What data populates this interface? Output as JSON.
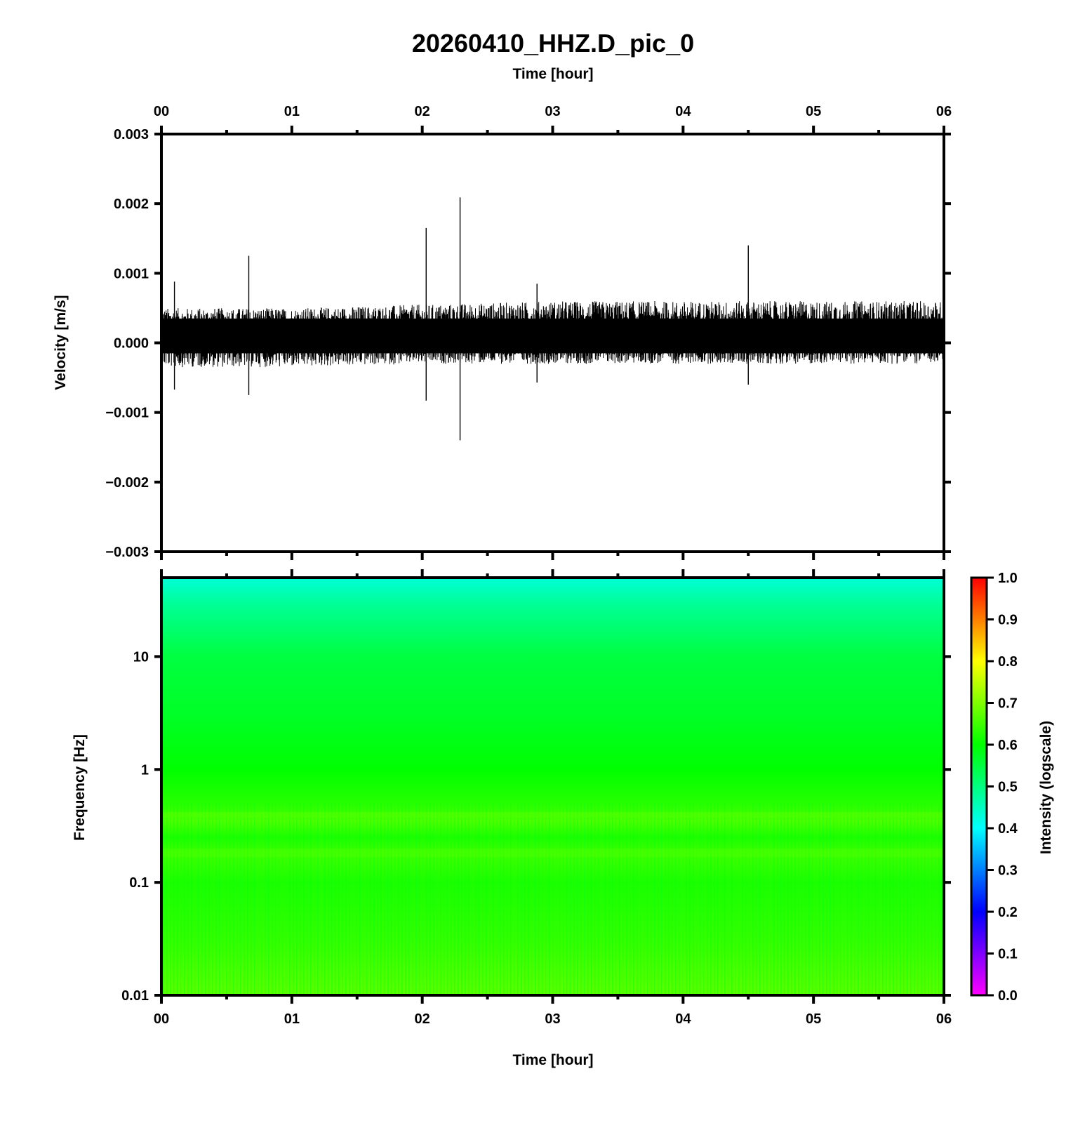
{
  "chart_data": [
    {
      "type": "line",
      "title": "20260410_HHZ.D_pic_0",
      "top_xlabel": "Time [hour]",
      "ylabel": "Velocity [m/s]",
      "x_ticks": [
        "00",
        "01",
        "02",
        "03",
        "04",
        "05",
        "06"
      ],
      "xlim": [
        0,
        6
      ],
      "ylim": [
        -0.003,
        0.003
      ],
      "y_ticks": [
        {
          "value": 0.003,
          "label": "0.003"
        },
        {
          "value": 0.002,
          "label": "0.002"
        },
        {
          "value": 0.001,
          "label": "0.001"
        },
        {
          "value": 0.0,
          "label": "0.000"
        },
        {
          "value": -0.001,
          "label": "−0.001"
        },
        {
          "value": -0.002,
          "label": "−0.002"
        },
        {
          "value": -0.003,
          "label": "−0.003"
        }
      ],
      "series": [
        {
          "color": "#000000",
          "baseline": 0.0001,
          "envelope": [
            {
              "x": 0.0,
              "low": -0.00035,
              "high": 0.0005
            },
            {
              "x": 1.0,
              "low": -0.00035,
              "high": 0.0005
            },
            {
              "x": 2.0,
              "low": -0.0003,
              "high": 0.00055
            },
            {
              "x": 3.0,
              "low": -0.0003,
              "high": 0.0006
            },
            {
              "x": 4.0,
              "low": -0.0003,
              "high": 0.0006
            },
            {
              "x": 5.0,
              "low": -0.0003,
              "high": 0.0006
            },
            {
              "x": 6.0,
              "low": -0.0003,
              "high": 0.0006
            }
          ],
          "spikes": [
            {
              "x": 0.67,
              "high": 0.00125,
              "low": -0.00075
            },
            {
              "x": 2.03,
              "high": 0.00165,
              "low": -0.00083
            },
            {
              "x": 2.29,
              "high": 0.00209,
              "low": -0.0014
            },
            {
              "x": 2.88,
              "high": 0.00085,
              "low": -0.00057
            },
            {
              "x": 4.5,
              "high": 0.0014,
              "low": -0.0006
            },
            {
              "x": 0.1,
              "high": 0.00088,
              "low": -0.00067
            }
          ]
        }
      ]
    },
    {
      "type": "heatmap",
      "xlabel": "Time [hour]",
      "ylabel": "Frequency [Hz]",
      "x_ticks": [
        "00",
        "01",
        "02",
        "03",
        "04",
        "05",
        "06"
      ],
      "xlim": [
        0,
        6
      ],
      "y_scale": "log",
      "ylim": [
        0.01,
        50
      ],
      "y_ticks": [
        {
          "value": 10,
          "label": "10"
        },
        {
          "value": 1,
          "label": "1"
        },
        {
          "value": 0.1,
          "label": "0.1"
        },
        {
          "value": 0.01,
          "label": "0.01"
        }
      ],
      "intensity_by_frequency": [
        {
          "f": 50,
          "value": 0.43
        },
        {
          "f": 30,
          "value": 0.48
        },
        {
          "f": 10,
          "value": 0.55
        },
        {
          "f": 3,
          "value": 0.57
        },
        {
          "f": 1,
          "value": 0.6
        },
        {
          "f": 0.5,
          "value": 0.63
        },
        {
          "f": 0.35,
          "value": 0.66
        },
        {
          "f": 0.25,
          "value": 0.62
        },
        {
          "f": 0.18,
          "value": 0.65
        },
        {
          "f": 0.1,
          "value": 0.62
        },
        {
          "f": 0.03,
          "value": 0.64
        },
        {
          "f": 0.01,
          "value": 0.67
        }
      ],
      "colorbar": {
        "label": "Intensity (logscale)",
        "range": [
          0.0,
          1.0
        ],
        "ticks": [
          "1.0",
          "0.9",
          "0.8",
          "0.7",
          "0.6",
          "0.5",
          "0.4",
          "0.3",
          "0.2",
          "0.1",
          "0.0"
        ],
        "colormap": [
          "#ff00ff",
          "#0000ff",
          "#00ffff",
          "#00ff00",
          "#ffff00",
          "#ff0000"
        ]
      }
    }
  ]
}
